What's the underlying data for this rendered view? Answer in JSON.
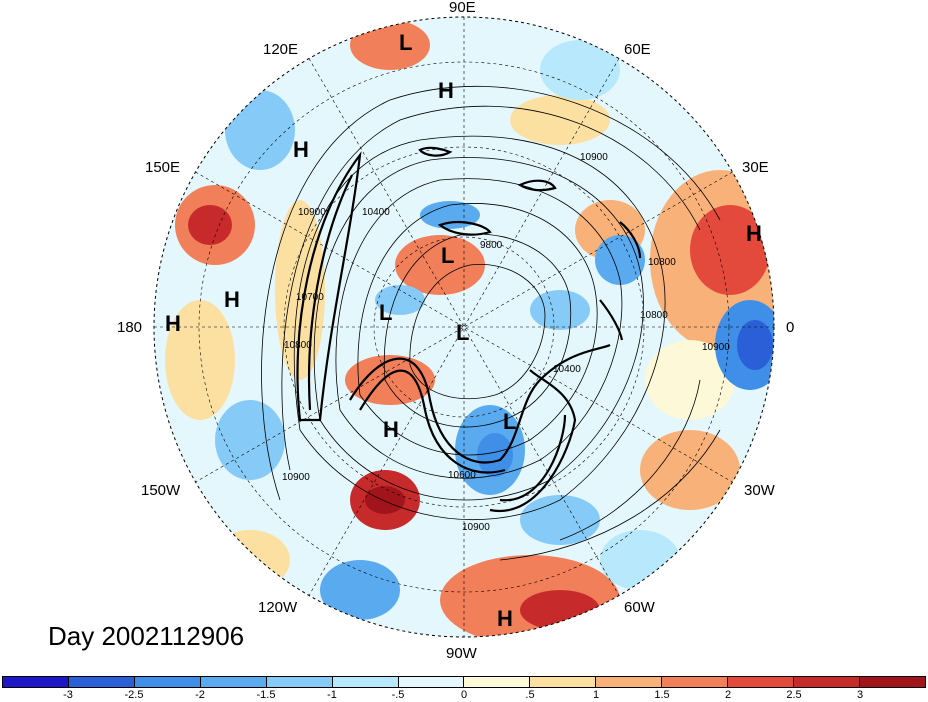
{
  "title": "Day 2002112906",
  "projection": "north-polar-stereographic",
  "longitude_labels": {
    "lon_90e": "90E",
    "lon_60e": "60E",
    "lon_30e": "30E",
    "lon_0": "0",
    "lon_30w": "30W",
    "lon_60w": "60W",
    "lon_90w": "90W",
    "lon_120w": "120W",
    "lon_150w": "150W",
    "lon_180": "180",
    "lon_150e": "150E",
    "lon_120e": "120E"
  },
  "pressure_centers": [
    "L",
    "H",
    "H",
    "H",
    "L",
    "H",
    "H",
    "L",
    "L",
    "H",
    "L",
    "H"
  ],
  "contour_labels": [
    "10900",
    "10800",
    "10800",
    "10900",
    "10400",
    "9800",
    "10700",
    "10900",
    "10600",
    "10900",
    "10900",
    "10400",
    "10800"
  ],
  "colorbar": {
    "colors": [
      "#1e17c8",
      "#2a5fd8",
      "#3f8ee8",
      "#5aaaf0",
      "#86cbf7",
      "#b7e8fb",
      "#e4f7fc",
      "#fcf8d8",
      "#fce0a2",
      "#f8b178",
      "#f17f59",
      "#e34a3c",
      "#c72a2a",
      "#a2141c"
    ],
    "ticks": [
      "-3",
      "-2.5",
      "-2",
      "-1.5",
      "-1",
      "-.5",
      "0",
      ".5",
      "1",
      "1.5",
      "2",
      "2.5",
      "3"
    ]
  }
}
